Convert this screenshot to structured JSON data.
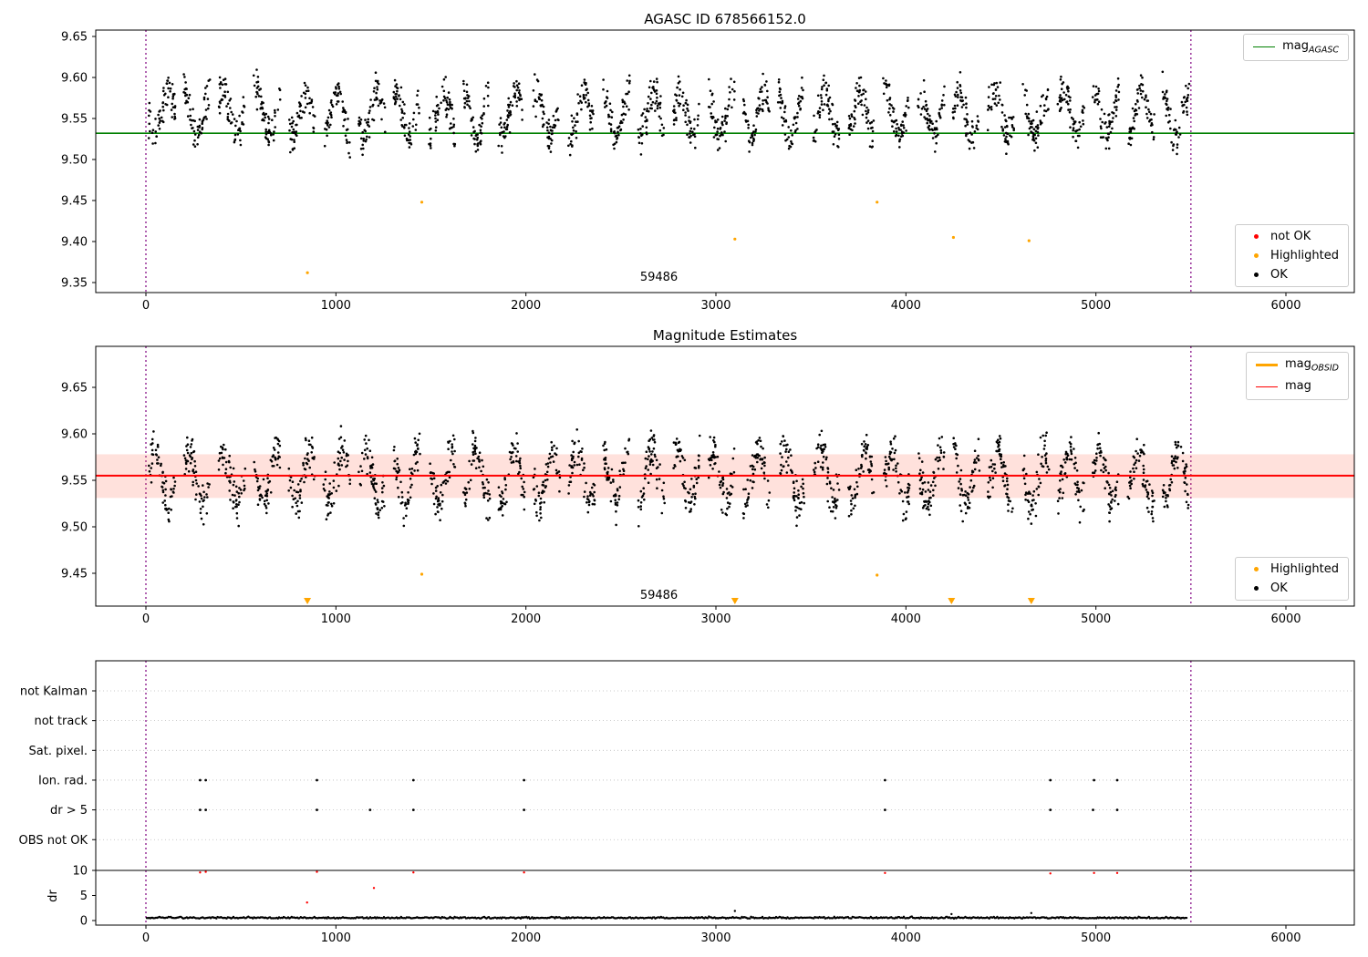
{
  "figure": {
    "background": "#ffffff",
    "vline_color": "#800080",
    "axis_color": "#000000"
  },
  "chart_data": [
    {
      "type": "scatter",
      "title": "AGASC ID 678566152.0",
      "xlim": [
        -264,
        6360
      ],
      "ylim": [
        9.338,
        9.658
      ],
      "grid": false,
      "xticks": [
        0,
        1000,
        2000,
        3000,
        4000,
        5000,
        6000
      ],
      "yticks": [
        9.65,
        9.6,
        9.55,
        9.5,
        9.45,
        9.4,
        9.35
      ],
      "ytick_labels": [
        "9.65",
        "9.60",
        "9.55",
        "9.50",
        "9.45",
        "9.40",
        "9.35"
      ],
      "annotation": {
        "text": "59486",
        "x": 2700,
        "y": 9.352
      },
      "vlines": {
        "x": [
          0,
          5500
        ],
        "color": "#800080",
        "style": "dotted"
      },
      "hline": {
        "name": "mag_AGASC",
        "value": 9.532,
        "color": "#008000"
      },
      "colors": {
        "ok": "#000000",
        "highlighted": "#ffa500",
        "not_ok": "#ff0000"
      },
      "legend_line": {
        "main": "mag",
        "sub": "AGASC",
        "position": "upper right"
      },
      "legend_markers": {
        "position": "lower right",
        "items": [
          {
            "label": "not OK",
            "color": "#ff0000"
          },
          {
            "label": "Highlighted",
            "color": "#ffa500"
          },
          {
            "label": "OK",
            "color": "#000000"
          }
        ]
      },
      "highlighted": [
        [
          850,
          9.362
        ],
        [
          1452,
          9.448
        ],
        [
          3100,
          9.403
        ],
        [
          3848,
          9.448
        ],
        [
          4250,
          9.405
        ],
        [
          4648,
          9.401
        ]
      ],
      "ok_series_gen": {
        "seed": 7,
        "clusters": 30,
        "start": 85,
        "spacing": 184,
        "halfwidth": 70,
        "points": 62,
        "base": 9.556,
        "amp": 0.027,
        "noise": 0.011,
        "ymin": 9.492,
        "ymax": 9.624
      }
    },
    {
      "type": "scatter",
      "title": "Magnitude Estimates",
      "xlim": [
        -264,
        6360
      ],
      "ylim": [
        9.415,
        9.694
      ],
      "grid": false,
      "xticks": [
        0,
        1000,
        2000,
        3000,
        4000,
        5000,
        6000
      ],
      "yticks": [
        9.65,
        9.6,
        9.55,
        9.5,
        9.45
      ],
      "ytick_labels": [
        "9.65",
        "9.60",
        "9.55",
        "9.50",
        "9.45"
      ],
      "annotation": {
        "text": "59486",
        "x": 2700,
        "y": 9.425
      },
      "vlines": {
        "x": [
          0,
          5500
        ],
        "color": "#800080",
        "style": "dotted"
      },
      "mag_line": {
        "name": "mag",
        "value": 9.555,
        "color": "#ff0000"
      },
      "band": {
        "lo": 9.531,
        "hi": 9.578,
        "color": "rgba(255,90,60,0.18)"
      },
      "colors": {
        "ok": "#000000",
        "highlighted": "#ffa500"
      },
      "legend_lines": {
        "position": "upper right",
        "items": [
          {
            "main": "mag",
            "sub": "OBSID",
            "color": "#ffa500"
          },
          {
            "main": "mag",
            "sub": "",
            "color": "#ff0000"
          }
        ]
      },
      "legend_markers": {
        "position": "lower right",
        "items": [
          {
            "label": "Highlighted",
            "color": "#ffa500"
          },
          {
            "label": "OK",
            "color": "#000000"
          }
        ]
      },
      "highlighted": [
        [
          1452,
          9.449
        ],
        [
          3848,
          9.448
        ]
      ],
      "clipped_highlighted_x": [
        850,
        3100,
        4240,
        4660
      ],
      "ok_series_gen": {
        "seed": 11,
        "clusters": 30,
        "start": 85,
        "spacing": 184,
        "halfwidth": 70,
        "points": 62,
        "base": 9.554,
        "amp": 0.028,
        "noise": 0.011,
        "ymin": 9.49,
        "ymax": 9.62
      }
    },
    {
      "type": "scatter",
      "title": "",
      "xlim": [
        -264,
        6360
      ],
      "grid": "dotted-horizontal",
      "xticks": [
        0,
        1000,
        2000,
        3000,
        4000,
        5000,
        6000
      ],
      "categories": [
        "not Kalman",
        "not track",
        "Sat. pixel.",
        "Ion. rad.",
        "dr > 5",
        "OBS not OK"
      ],
      "dr_ticks": [
        "10",
        "5",
        "0"
      ],
      "ylabel": "dr",
      "vlines": {
        "x": [
          0,
          5500
        ],
        "color": "#800080",
        "style": "dotted"
      },
      "threshold_dr": 10,
      "colors": {
        "ok": "#000000",
        "not_ok": "#ff0000"
      },
      "flags": {
        "ion_rad_x": [
          285,
          315,
          900,
          1408,
          1990,
          3890,
          4760,
          4990,
          5112
        ],
        "dr_gt_5_x": [
          285,
          315,
          900,
          1180,
          1408,
          1990,
          3890,
          4760,
          4985,
          5112
        ]
      },
      "not_ok_points": [
        [
          285,
          9.6
        ],
        [
          315,
          9.7
        ],
        [
          900,
          9.7
        ],
        [
          1408,
          9.6
        ],
        [
          1990,
          9.6
        ],
        [
          3890,
          9.5
        ],
        [
          4760,
          9.4
        ],
        [
          4990,
          9.5
        ],
        [
          5112,
          9.5
        ],
        [
          1200,
          6.5
        ],
        [
          848,
          3.6
        ]
      ],
      "dr_spikes": [
        [
          3100,
          1.9
        ],
        [
          4240,
          1.3
        ],
        [
          4660,
          1.5
        ]
      ],
      "dr_gen": {
        "seed": 3,
        "x0": 5,
        "x1": 5480,
        "step": 6,
        "base": 0.45,
        "noise": 0.3
      }
    }
  ]
}
